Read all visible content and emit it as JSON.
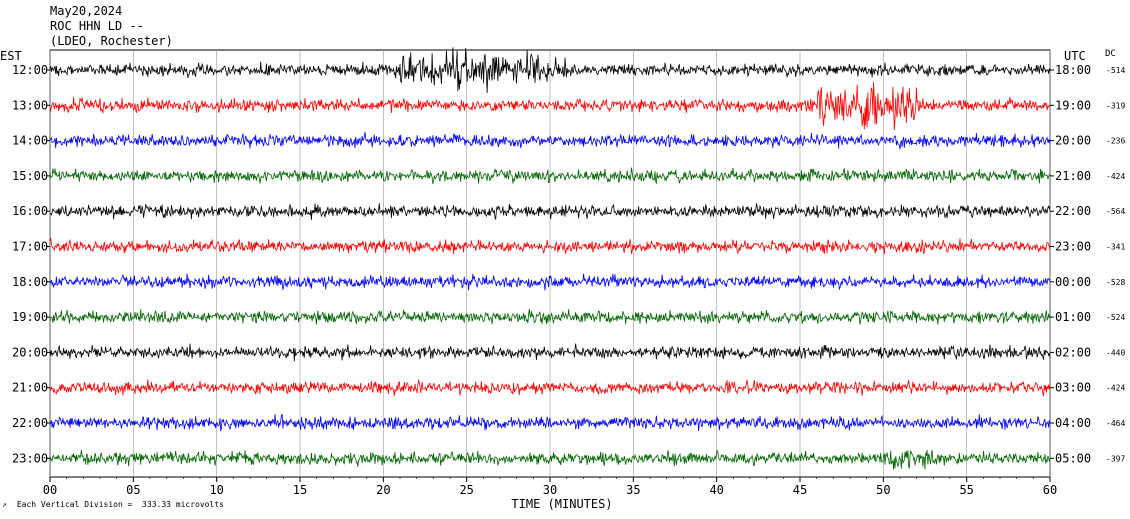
{
  "header": {
    "date": "May20,2024",
    "station": "ROC HHN LD --",
    "network": "(LDEO, Rochester)"
  },
  "left_axis_label": "EST",
  "right_axis_label": "UTC",
  "dc_label": "DC",
  "footer": {
    "scale_text": "Each Vertical Division =  333.33 microvolts",
    "x_axis_title": "TIME (MINUTES)"
  },
  "colors": {
    "black": "#000000",
    "red": "#ff0000",
    "blue": "#0000ff",
    "green": "#006400"
  },
  "chart_data": {
    "type": "line",
    "title": "May20,2024 ROC HHN LD -- (LDEO, Rochester)",
    "xlabel": "TIME (MINUTES)",
    "ylabel": "",
    "x_ticks": [
      "00",
      "05",
      "10",
      "15",
      "20",
      "25",
      "30",
      "35",
      "40",
      "45",
      "50",
      "55",
      "60"
    ],
    "xlim": [
      0,
      60
    ],
    "grid": true,
    "rows": [
      {
        "est": "12:00",
        "utc": "18:00",
        "dc": "-514",
        "color": "black"
      },
      {
        "est": "13:00",
        "utc": "19:00",
        "dc": "-319",
        "color": "red"
      },
      {
        "est": "14:00",
        "utc": "20:00",
        "dc": "-236",
        "color": "blue"
      },
      {
        "est": "15:00",
        "utc": "21:00",
        "dc": "-424",
        "color": "green"
      },
      {
        "est": "16:00",
        "utc": "22:00",
        "dc": "-564",
        "color": "black"
      },
      {
        "est": "17:00",
        "utc": "23:00",
        "dc": "-341",
        "color": "red"
      },
      {
        "est": "18:00",
        "utc": "00:00",
        "dc": "-528",
        "color": "blue"
      },
      {
        "est": "19:00",
        "utc": "01:00",
        "dc": "-524",
        "color": "green"
      },
      {
        "est": "20:00",
        "utc": "02:00",
        "dc": "-440",
        "color": "black"
      },
      {
        "est": "21:00",
        "utc": "03:00",
        "dc": "-424",
        "color": "red"
      },
      {
        "est": "22:00",
        "utc": "04:00",
        "dc": "-464",
        "color": "blue"
      },
      {
        "est": "23:00",
        "utc": "05:00",
        "dc": "-397",
        "color": "green"
      }
    ]
  }
}
